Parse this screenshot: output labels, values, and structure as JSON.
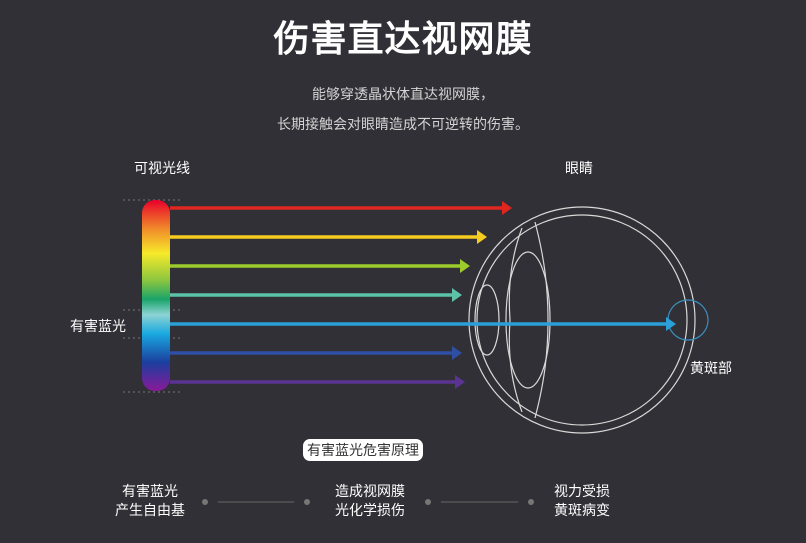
{
  "title": "伤害直达视网膜",
  "subtitle": [
    "能够穿透晶状体直达视网膜，",
    "长期接触会对眼睛造成不可逆转的伤害。"
  ],
  "labels": {
    "visible_light": "可视光线",
    "eye": "眼睛",
    "harmful_blue": "有害蓝光",
    "macula": "黄斑部"
  },
  "rays": [
    {
      "color": "#e0261f"
    },
    {
      "color": "#f5cc1f"
    },
    {
      "color": "#9ccb2c"
    },
    {
      "color": "#5cc3a8"
    },
    {
      "color": "#2a9fd8"
    },
    {
      "color": "#2e4fa3"
    },
    {
      "color": "#5a3393"
    }
  ],
  "badge": "有害蓝光危害原理",
  "steps": [
    {
      "line1": "有害蓝光",
      "line2": "产生自由基"
    },
    {
      "line1": "造成视网膜",
      "line2": "光化学损伤"
    },
    {
      "line1": "视力受损",
      "line2": "黄斑病变"
    }
  ]
}
